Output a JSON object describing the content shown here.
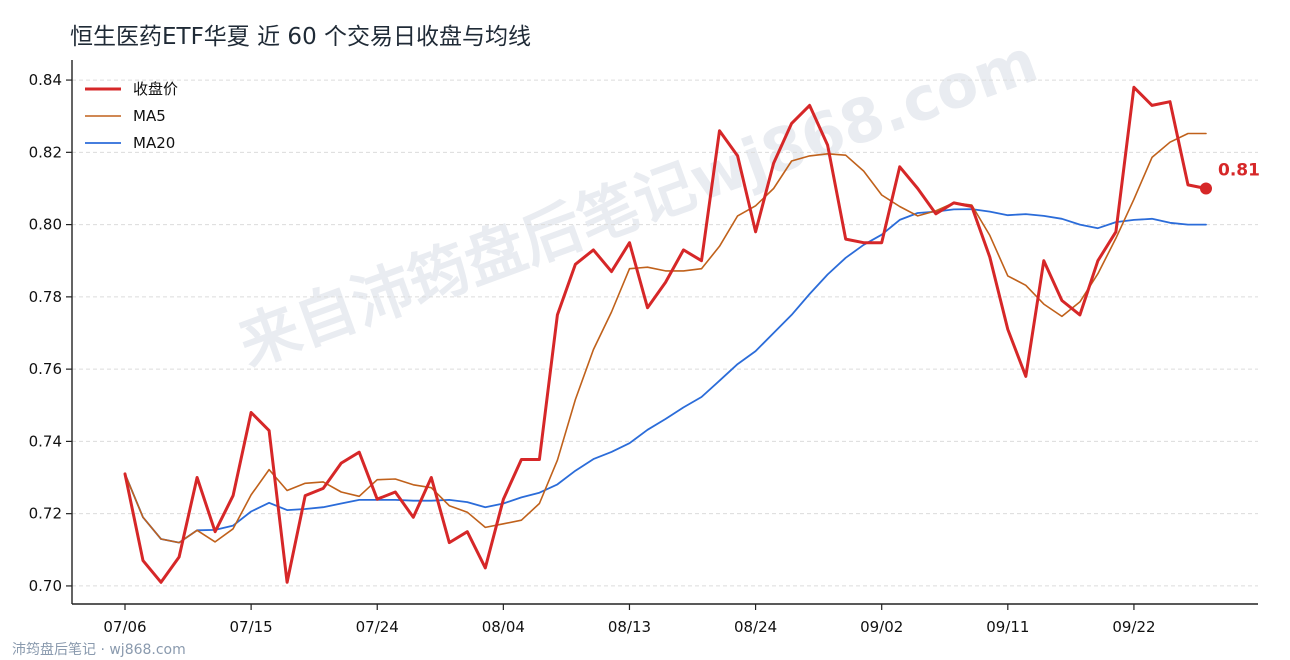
{
  "chart_data": {
    "type": "line",
    "title": "恒生医药ETF华夏 近 60 个交易日收盘与均线",
    "xlabel": "",
    "ylabel": "",
    "ylim": [
      0.695,
      0.845
    ],
    "yticks": [
      "0.70",
      "0.72",
      "0.74",
      "0.76",
      "0.78",
      "0.80",
      "0.82",
      "0.84"
    ],
    "xtick_labels": [
      {
        "index": 0,
        "label": "07/06"
      },
      {
        "index": 7,
        "label": "07/15"
      },
      {
        "index": 14,
        "label": "07/24"
      },
      {
        "index": 21,
        "label": "08/04"
      },
      {
        "index": 28,
        "label": "08/13"
      },
      {
        "index": 35,
        "label": "08/24"
      },
      {
        "index": 42,
        "label": "09/02"
      },
      {
        "index": 49,
        "label": "09/11"
      },
      {
        "index": 56,
        "label": "09/22"
      }
    ],
    "grid": true,
    "legend_position": "top-left",
    "series": [
      {
        "name": "收盘价",
        "color": "#d62728",
        "values": [
          0.731,
          0.707,
          0.701,
          0.708,
          0.73,
          0.715,
          0.725,
          0.748,
          0.743,
          0.701,
          0.725,
          0.727,
          0.734,
          0.737,
          0.724,
          0.726,
          0.719,
          0.73,
          0.712,
          0.715,
          0.705,
          0.724,
          0.735,
          0.735,
          0.775,
          0.789,
          0.793,
          0.787,
          0.795,
          0.777,
          0.784,
          0.793,
          0.79,
          0.826,
          0.819,
          0.798,
          0.817,
          0.828,
          0.833,
          0.822,
          0.796,
          0.795,
          0.795,
          0.816,
          0.81,
          0.803,
          0.806,
          0.805,
          0.791,
          0.771,
          0.758,
          0.79,
          0.779,
          0.775,
          0.79,
          0.798,
          0.838,
          0.833,
          0.834,
          0.811,
          0.81
        ]
      },
      {
        "name": "MA5",
        "color": "#c0611b",
        "values": [
          0.731,
          0.719,
          0.713,
          0.712,
          0.7154,
          0.7122,
          0.7158,
          0.7252,
          0.7322,
          0.7264,
          0.7284,
          0.7288,
          0.726,
          0.7248,
          0.7294,
          0.7296,
          0.728,
          0.7272,
          0.7222,
          0.7204,
          0.7162,
          0.7172,
          0.7182,
          0.7228,
          0.7348,
          0.7516,
          0.7654,
          0.7758,
          0.7878,
          0.7882,
          0.7872,
          0.7872,
          0.7878,
          0.794,
          0.8024,
          0.8052,
          0.81,
          0.8176,
          0.819,
          0.8196,
          0.8192,
          0.8148,
          0.8082,
          0.805,
          0.8024,
          0.8038,
          0.806,
          0.8054,
          0.797,
          0.7858,
          0.7832,
          0.778,
          0.7746,
          0.7786,
          0.7864,
          0.7962,
          0.807,
          0.8186,
          0.8228,
          0.8252,
          0.8252
        ]
      },
      {
        "name": "MA20",
        "color": "#2b6cd9",
        "values": [
          0.731,
          0.719,
          0.713,
          0.712,
          0.7154,
          0.7155,
          0.7167,
          0.7206,
          0.723,
          0.721,
          0.7213,
          0.7218,
          0.7228,
          0.7238,
          0.7238,
          0.7238,
          0.7236,
          0.7236,
          0.7238,
          0.7232,
          0.7218,
          0.7228,
          0.7245,
          0.7258,
          0.7281,
          0.7319,
          0.7351,
          0.7371,
          0.7395,
          0.7432,
          0.7462,
          0.7494,
          0.7523,
          0.7568,
          0.7614,
          0.765,
          0.77,
          0.775,
          0.7808,
          0.7862,
          0.7908,
          0.7944,
          0.7972,
          0.8013,
          0.8032,
          0.8036,
          0.8042,
          0.8043,
          0.8036,
          0.8026,
          0.8029,
          0.8024,
          0.8016,
          0.8,
          0.799,
          0.8007,
          0.8013,
          0.8016,
          0.8005,
          0.8,
          0.8
        ]
      }
    ],
    "last_value_label": "0.81"
  },
  "watermark": "来自沛筠盘后笔记wj868.com",
  "footer": "沛筠盘后笔记 · wj868.com"
}
